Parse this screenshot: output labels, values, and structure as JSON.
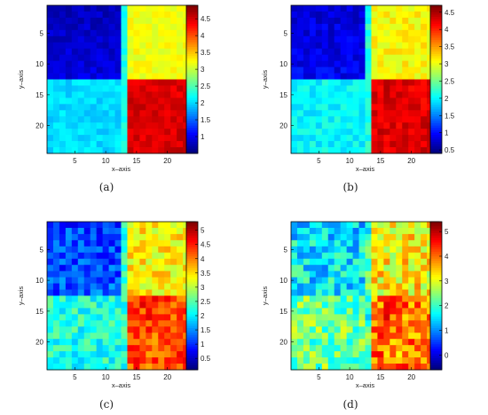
{
  "panels": [
    {
      "caption": "(a)",
      "chart_data": {
        "type": "heatmap",
        "xlabel": "x–axis",
        "ylabel": "y–axis",
        "grid": "24x24",
        "xlim": [
          0.5,
          24.5
        ],
        "ylim": [
          0.5,
          24.5
        ],
        "x_ticks": [
          "5",
          "10",
          "15",
          "20"
        ],
        "y_ticks": [
          "5",
          "10",
          "15",
          "20"
        ],
        "colorbar_ticks": [
          "1",
          "1.5",
          "2",
          "2.5",
          "3",
          "3.5",
          "4",
          "4.5"
        ],
        "colorbar_range": [
          0.5,
          4.9
        ],
        "quadrant_values": {
          "top_left": 0.9,
          "top_right": 3.2,
          "bottom_left": 2.0,
          "bottom_right": 4.5
        },
        "boundary_x": 13,
        "boundary_y": 12,
        "noise": 0.15,
        "seed": 11
      }
    },
    {
      "caption": "(b)",
      "chart_data": {
        "type": "heatmap",
        "xlabel": "x–axis",
        "ylabel": "y–axis",
        "grid": "24x24",
        "xlim": [
          0.5,
          24.5
        ],
        "ylim": [
          0.5,
          24.5
        ],
        "x_ticks": [
          "5",
          "10",
          "15",
          "20"
        ],
        "y_ticks": [
          "5",
          "10",
          "15",
          "20"
        ],
        "colorbar_ticks": [
          "0.5",
          "1",
          "1.5",
          "2",
          "2.5",
          "3",
          "3.5",
          "4",
          "4.5"
        ],
        "colorbar_range": [
          0.4,
          4.7
        ],
        "quadrant_values": {
          "top_left": 0.9,
          "top_right": 3.1,
          "bottom_left": 2.0,
          "bottom_right": 4.3
        },
        "boundary_x": 13,
        "boundary_y": 12,
        "noise": 0.2,
        "seed": 23
      }
    },
    {
      "caption": "(c)",
      "chart_data": {
        "type": "heatmap",
        "xlabel": "x–axis",
        "ylabel": "y–axis",
        "grid": "24x24",
        "xlim": [
          0.5,
          24.5
        ],
        "ylim": [
          0.5,
          24.5
        ],
        "x_ticks": [
          "5",
          "10",
          "15",
          "20"
        ],
        "y_ticks": [
          "5",
          "10",
          "15",
          "20"
        ],
        "colorbar_ticks": [
          "0.5",
          "1",
          "1.5",
          "2",
          "2.5",
          "3",
          "3.5",
          "4",
          "4.5",
          "5"
        ],
        "colorbar_range": [
          0.1,
          5.3
        ],
        "quadrant_values": {
          "top_left": 1.2,
          "top_right": 3.4,
          "bottom_left": 2.2,
          "bottom_right": 4.3
        },
        "boundary_x": 13,
        "boundary_y": 12,
        "noise": 0.45,
        "seed": 37
      }
    },
    {
      "caption": "(d)",
      "chart_data": {
        "type": "heatmap",
        "xlabel": "x–axis",
        "ylabel": "y–axis",
        "grid": "24x24",
        "xlim": [
          0.5,
          24.5
        ],
        "ylim": [
          0.5,
          24.5
        ],
        "x_ticks": [
          "5",
          "10",
          "15",
          "20"
        ],
        "y_ticks": [
          "5",
          "10",
          "15",
          "20"
        ],
        "colorbar_ticks": [
          "0",
          "1",
          "2",
          "3",
          "4",
          "5"
        ],
        "colorbar_range": [
          -0.6,
          5.4
        ],
        "quadrant_values": {
          "top_left": 1.6,
          "top_right": 3.2,
          "bottom_left": 2.3,
          "bottom_right": 4.0
        },
        "boundary_x": 13,
        "boundary_y": 12,
        "noise": 0.75,
        "seed": 53
      }
    }
  ]
}
